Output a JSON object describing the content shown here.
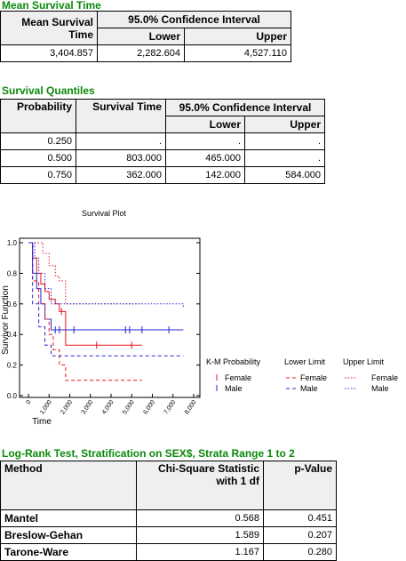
{
  "mean_survival": {
    "title": "Mean Survival Time",
    "headers": [
      "Mean Survival Time",
      "95.0% Confidence Interval",
      "Lower",
      "Upper"
    ],
    "rows": [
      [
        "3,404.857",
        "2,282.604",
        "4,527.110"
      ]
    ]
  },
  "quantiles": {
    "title": "Survival Quantiles",
    "headers": [
      "Probability",
      "Survival Time",
      "95.0% Confidence Interval",
      "Lower",
      "Upper"
    ],
    "rows": [
      [
        "0.250",
        ".",
        ".",
        "."
      ],
      [
        "0.500",
        "803.000",
        "465.000",
        "."
      ],
      [
        "0.750",
        "362.000",
        "142.000",
        "584.000"
      ]
    ]
  },
  "chart_data": {
    "type": "step",
    "title": "Survival Plot",
    "xlabel": "Time",
    "ylabel": "Survivor Function",
    "xlim": [
      0,
      8000
    ],
    "xticks": [
      0,
      {
        "value": 1000,
        "label": "1,000"
      },
      {
        "value": 2000,
        "label": "2,000"
      },
      {
        "value": 3000,
        "label": "3,000"
      },
      {
        "value": 4000,
        "label": "4,000"
      },
      {
        "value": 5000,
        "label": "5,000"
      },
      {
        "value": 6000,
        "label": "6,000"
      },
      {
        "value": 7000,
        "label": "7,000"
      },
      {
        "value": 8000,
        "label": "8,000"
      }
    ],
    "ylim": [
      0,
      1
    ],
    "yticks": [
      {
        "value": 0,
        "label": "0.0"
      },
      {
        "value": 0.2,
        "label": "0.2"
      },
      {
        "value": 0.4,
        "label": "0.4"
      },
      {
        "value": 0.6,
        "label": "0.6"
      },
      {
        "value": 0.8,
        "label": "0.8"
      },
      {
        "value": 1,
        "label": "1.0"
      }
    ],
    "legend_groups": [
      "K-M Probability",
      "Lower Limit",
      "Upper Limit"
    ],
    "series": [
      {
        "name": "Female",
        "group": 0,
        "color": "#e8141b",
        "dash": "solid",
        "x": [
          0,
          200,
          400,
          600,
          800,
          1000,
          1300,
          1500,
          1800,
          5500
        ],
        "values": [
          1,
          0.9,
          0.8,
          0.73,
          0.68,
          0.63,
          0.6,
          0.55,
          0.33,
          0.33
        ],
        "censored": {
          "x": [
            1600,
            3300,
            5000
          ],
          "values": [
            0.55,
            0.33,
            0.33
          ]
        }
      },
      {
        "name": "Male",
        "group": 0,
        "color": "#2424d8",
        "dash": "solid",
        "x": [
          0,
          200,
          400,
          600,
          800,
          1100,
          7500
        ],
        "values": [
          1,
          0.8,
          0.7,
          0.6,
          0.5,
          0.43,
          0.43
        ],
        "censored": {
          "x": [
            1300,
            1500,
            2200,
            4700,
            4900,
            5500,
            6800
          ],
          "values": [
            0.43,
            0.43,
            0.43,
            0.43,
            0.43,
            0.43,
            0.43
          ]
        }
      },
      {
        "name": "Female",
        "group": 1,
        "color": "#e8141b",
        "dash": "dashed",
        "x": [
          0,
          200,
          500,
          800,
          1000,
          1200,
          1500,
          1800,
          5500
        ],
        "values": [
          1,
          0.75,
          0.6,
          0.5,
          0.4,
          0.3,
          0.2,
          0.1,
          0.1
        ]
      },
      {
        "name": "Male",
        "group": 1,
        "color": "#2424d8",
        "dash": "dashed",
        "x": [
          0,
          200,
          500,
          800,
          1100,
          7500
        ],
        "values": [
          1,
          0.6,
          0.45,
          0.33,
          0.26,
          0.26
        ]
      },
      {
        "name": "Female",
        "group": 2,
        "color": "#e8141b",
        "dash": "dotted",
        "x": [
          0,
          700,
          1000,
          1300,
          1500,
          1800,
          5500
        ],
        "values": [
          1,
          0.93,
          0.85,
          0.78,
          0.75,
          0.6,
          0.6
        ]
      },
      {
        "name": "Male",
        "group": 2,
        "color": "#2424d8",
        "dash": "dotted",
        "x": [
          0,
          300,
          500,
          800,
          1100,
          7500
        ],
        "values": [
          1,
          0.9,
          0.8,
          0.7,
          0.6,
          0.58
        ]
      }
    ]
  },
  "logrank": {
    "title": "Log-Rank Test, Stratification on SEX$, Strata Range 1 to 2",
    "headers": [
      "Method",
      "Chi-Square Statistic with 1 df",
      "p-Value"
    ],
    "rows": [
      [
        "Mantel",
        "0.568",
        "0.451"
      ],
      [
        "Breslow-Gehan",
        "1.589",
        "0.207"
      ],
      [
        "Tarone-Ware",
        "1.167",
        "0.280"
      ]
    ]
  }
}
